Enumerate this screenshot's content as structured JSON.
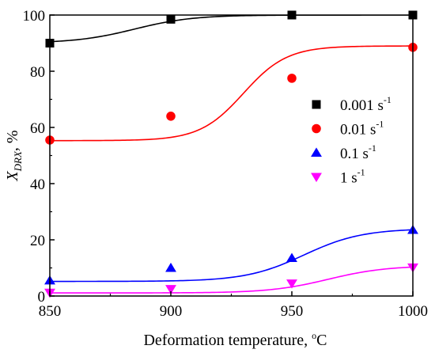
{
  "chart_data": {
    "type": "scatter",
    "xlabel": {
      "main": "Deformation temperature, ",
      "sup": "o",
      "unit": "C"
    },
    "ylabel": {
      "main": "X",
      "sub": "DRX",
      "rest": ", %"
    },
    "xlim": [
      850,
      1000
    ],
    "ylim": [
      0,
      100
    ],
    "xticks": [
      850,
      900,
      950,
      1000
    ],
    "yticks": [
      0,
      20,
      40,
      60,
      80,
      100
    ],
    "grid": false,
    "legend": "right",
    "series": [
      {
        "name": "0.001 s",
        "sup": "-1",
        "marker": "square",
        "color": "#000000",
        "x": [
          850,
          900,
          950,
          1000
        ],
        "y": [
          90,
          98.5,
          100,
          100
        ],
        "fit": {
          "bottom": 90,
          "top": 100,
          "mid": 885,
          "width": 12
        }
      },
      {
        "name": "0.01 s",
        "sup": "-1",
        "marker": "circle",
        "color": "#ff0000",
        "x": [
          850,
          900,
          950,
          1000
        ],
        "y": [
          55.5,
          64,
          77.5,
          88.5
        ],
        "fit": {
          "bottom": 55.3,
          "top": 89,
          "mid": 930,
          "width": 9
        }
      },
      {
        "name": "0.1  s",
        "sup": "-1",
        "marker": "triangle-up",
        "color": "#0000ff",
        "x": [
          850,
          900,
          950,
          1000
        ],
        "y": [
          5.5,
          10,
          13.5,
          23.5
        ],
        "fit": {
          "bottom": 5.2,
          "top": 24,
          "mid": 955,
          "width": 12
        }
      },
      {
        "name": "1   s",
        "sup": "-1",
        "marker": "triangle-down",
        "color": "#ff00ff",
        "x": [
          850,
          900,
          950,
          1000
        ],
        "y": [
          1.2,
          2.5,
          4.5,
          10.2
        ],
        "fit": {
          "bottom": 1.1,
          "top": 10.8,
          "mid": 965,
          "width": 12
        }
      }
    ]
  }
}
